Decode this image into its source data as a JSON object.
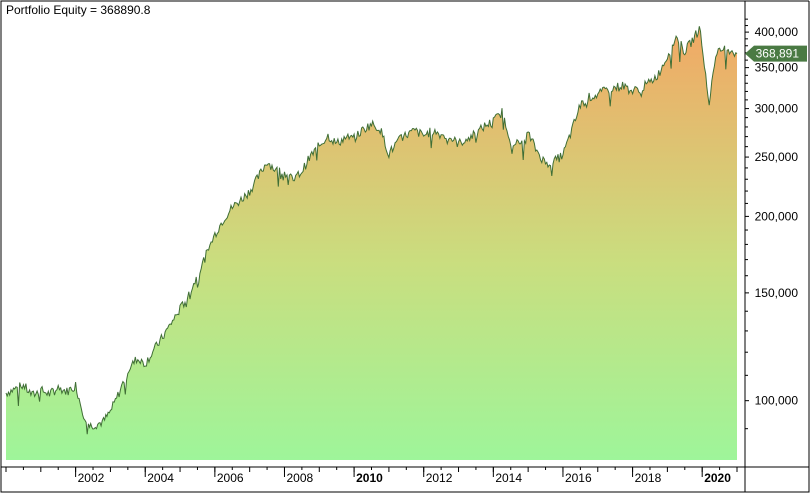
{
  "chart_data": {
    "type": "area",
    "title": "Portfolio Equity = 368890.8",
    "xlabel": "",
    "ylabel": "",
    "y_scale": "log",
    "ylim": [
      80000,
      425000
    ],
    "xlim": [
      2000.0,
      2021.0
    ],
    "x_tick_labels": [
      {
        "year": 2002,
        "label": "2002",
        "bold": false
      },
      {
        "year": 2004,
        "label": "2004",
        "bold": false
      },
      {
        "year": 2006,
        "label": "2006",
        "bold": false
      },
      {
        "year": 2008,
        "label": "2008",
        "bold": false
      },
      {
        "year": 2010,
        "label": "2010",
        "bold": true
      },
      {
        "year": 2012,
        "label": "2012",
        "bold": false
      },
      {
        "year": 2014,
        "label": "2014",
        "bold": false
      },
      {
        "year": 2016,
        "label": "2016",
        "bold": false
      },
      {
        "year": 2018,
        "label": "2018",
        "bold": false
      },
      {
        "year": 2020,
        "label": "2020",
        "bold": true
      }
    ],
    "y_ticks": [
      {
        "value": 100000,
        "label": "100,000"
      },
      {
        "value": 150000,
        "label": "150,000"
      },
      {
        "value": 200000,
        "label": "200,000"
      },
      {
        "value": 250000,
        "label": "250,000"
      },
      {
        "value": 300000,
        "label": "300,000"
      },
      {
        "value": 350000,
        "label": "350,000"
      },
      {
        "value": 400000,
        "label": "400,000"
      }
    ],
    "last_value_label": "368,891",
    "colors": {
      "line": "#3f6e35",
      "fill_top": "#f2a865",
      "fill_bottom": "#9ef59a",
      "badge": "#4a7a43",
      "border": "#000000"
    },
    "series": [
      {
        "x": [
          2000.0,
          2000.25,
          2000.5,
          2000.75,
          2001.0,
          2001.25,
          2001.5,
          2001.75,
          2002.0,
          2002.2,
          2002.4,
          2002.6,
          2002.8,
          2003.0,
          2003.25,
          2003.5,
          2003.75,
          2004.0,
          2004.25,
          2004.5,
          2004.75,
          2005.0,
          2005.25,
          2005.5,
          2005.75,
          2006.0,
          2006.25,
          2006.5,
          2006.75,
          2007.0,
          2007.25,
          2007.5,
          2007.75,
          2008.0,
          2008.25,
          2008.5,
          2008.75,
          2009.0,
          2009.25,
          2009.5,
          2009.75,
          2010.0,
          2010.25,
          2010.5,
          2010.75,
          2011.0,
          2011.25,
          2011.5,
          2011.75,
          2012.0,
          2012.25,
          2012.5,
          2012.75,
          2013.0,
          2013.25,
          2013.5,
          2013.75,
          2014.0,
          2014.25,
          2014.5,
          2014.75,
          2015.0,
          2015.25,
          2015.5,
          2015.75,
          2016.0,
          2016.25,
          2016.5,
          2016.75,
          2017.0,
          2017.25,
          2017.5,
          2017.75,
          2018.0,
          2018.25,
          2018.5,
          2018.75,
          2019.0,
          2019.25,
          2019.5,
          2019.75,
          2019.95,
          2020.1,
          2020.2,
          2020.35,
          2020.5,
          2020.75,
          2021.0
        ],
        "y": [
          103000,
          104500,
          106000,
          102000,
          104000,
          102500,
          105000,
          103500,
          106000,
          96000,
          91000,
          91500,
          92500,
          96000,
          103000,
          112000,
          117000,
          115000,
          121000,
          127000,
          134000,
          141000,
          149000,
          160000,
          173000,
          187000,
          198000,
          207000,
          213000,
          220000,
          232000,
          246000,
          238000,
          236000,
          229000,
          237000,
          251000,
          261000,
          271000,
          263000,
          269000,
          268000,
          277000,
          283000,
          278000,
          253000,
          265000,
          272000,
          276000,
          271000,
          276000,
          272000,
          269000,
          263000,
          268000,
          273000,
          281000,
          286000,
          296000,
          266000,
          262000,
          273000,
          256000,
          244000,
          246000,
          252000,
          276000,
          304000,
          313000,
          316000,
          322000,
          325000,
          327000,
          320000,
          324000,
          331000,
          342000,
          366000,
          392000,
          372000,
          390000,
          408000,
          337000,
          306000,
          358000,
          374000,
          376000,
          368891
        ]
      }
    ]
  }
}
